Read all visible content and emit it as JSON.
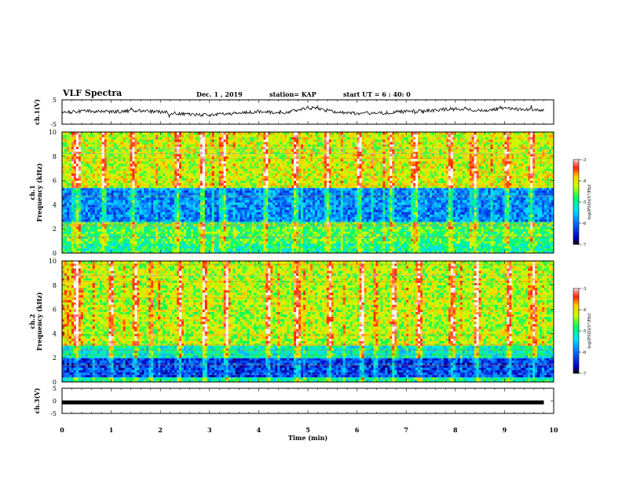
{
  "header": {
    "title": "VLF Spectra",
    "date": "Dec. 1 , 2019",
    "station": "station= KAP",
    "start": "start  UT =   6 : 40: 0"
  },
  "chart_data": [
    {
      "type": "line",
      "panel": "waveform-ch1",
      "ylabel": "ch.1(V)",
      "ylim": [
        -5,
        5
      ],
      "yticks": [
        "5",
        "-5"
      ],
      "xlim": [
        0,
        10
      ],
      "series": [
        {
          "values_note_free": true,
          "x": [
            0,
            0.5,
            1,
            1.5,
            2,
            2.5,
            3,
            3.5,
            4,
            4.5,
            5,
            5.5,
            6,
            6.5,
            7,
            7.5,
            8,
            8.5,
            9,
            9.5,
            9.8
          ],
          "y": [
            -0.2,
            0.3,
            0.1,
            0.6,
            0.0,
            -1.0,
            -1.2,
            -0.6,
            0.2,
            -0.5,
            1.8,
            0.3,
            -0.6,
            -0.4,
            0.2,
            0.5,
            1.5,
            0.6,
            1.6,
            0.8,
            0.9
          ]
        }
      ]
    },
    {
      "type": "heatmap",
      "panel": "spectrogram-ch1",
      "ylabel": "ch.1\nFrequency (kHz)",
      "ylim": [
        0,
        10
      ],
      "yticks": [
        "0",
        "2",
        "4",
        "6",
        "8",
        "10"
      ],
      "xlim": [
        0,
        10.0
      ],
      "colorbar": {
        "label": "log(PSD)(V²/Hz)",
        "range": [
          -7,
          -3
        ],
        "ticks": [
          "-3",
          "-4",
          "-5",
          "-6",
          "-7"
        ]
      },
      "bands": [
        {
          "from_khz": 0.0,
          "to_khz": 0.8,
          "level": -5.0
        },
        {
          "from_khz": 0.8,
          "to_khz": 2.6,
          "level": -4.7
        },
        {
          "from_khz": 2.6,
          "to_khz": 5.5,
          "level": -5.9
        },
        {
          "from_khz": 5.5,
          "to_khz": 10.0,
          "level": -4.2
        }
      ],
      "bursts_min": [
        0.3,
        0.85,
        1.45,
        2.35,
        2.85,
        3.3,
        4.15,
        4.75,
        5.4,
        6.05,
        6.7,
        7.2,
        7.9,
        8.4,
        9.05,
        9.55
      ]
    },
    {
      "type": "heatmap",
      "panel": "spectrogram-ch2",
      "ylabel": "ch.2\nFrequency (kHz)",
      "ylim": [
        0,
        10
      ],
      "yticks": [
        "0",
        "2",
        "4",
        "6",
        "8",
        "10"
      ],
      "xlim": [
        0,
        10.0
      ],
      "colorbar": {
        "label": "log(PSD)(V²/Hz)",
        "range": [
          -7,
          -3
        ],
        "ticks": [
          "-3",
          "-4",
          "-5",
          "-6",
          "-7"
        ]
      },
      "bands": [
        {
          "from_khz": 0.0,
          "to_khz": 0.5,
          "level": -5.0
        },
        {
          "from_khz": 0.5,
          "to_khz": 2.0,
          "level": -6.3
        },
        {
          "from_khz": 2.0,
          "to_khz": 3.0,
          "level": -5.2
        },
        {
          "from_khz": 3.0,
          "to_khz": 10.0,
          "level": -4.3
        }
      ],
      "bursts_min": [
        0.3,
        1.0,
        1.5,
        2.4,
        2.9,
        3.35,
        4.2,
        4.8,
        5.45,
        6.1,
        6.75,
        7.25,
        7.95,
        8.45,
        9.1,
        9.6
      ]
    },
    {
      "type": "line",
      "panel": "waveform-ch3",
      "ylabel": "ch.3(V)",
      "ylim": [
        -5,
        5
      ],
      "yticks": [
        "5",
        "0",
        "-5"
      ],
      "xlim": [
        0,
        10
      ],
      "xlabel": "Time  (min)",
      "xticks": [
        "0",
        "1",
        "2",
        "3",
        "4",
        "5",
        "6",
        "7",
        "8",
        "9",
        "10"
      ],
      "series": [
        {
          "x": [
            0,
            9.8
          ],
          "y": [
            0,
            0
          ]
        }
      ]
    }
  ]
}
